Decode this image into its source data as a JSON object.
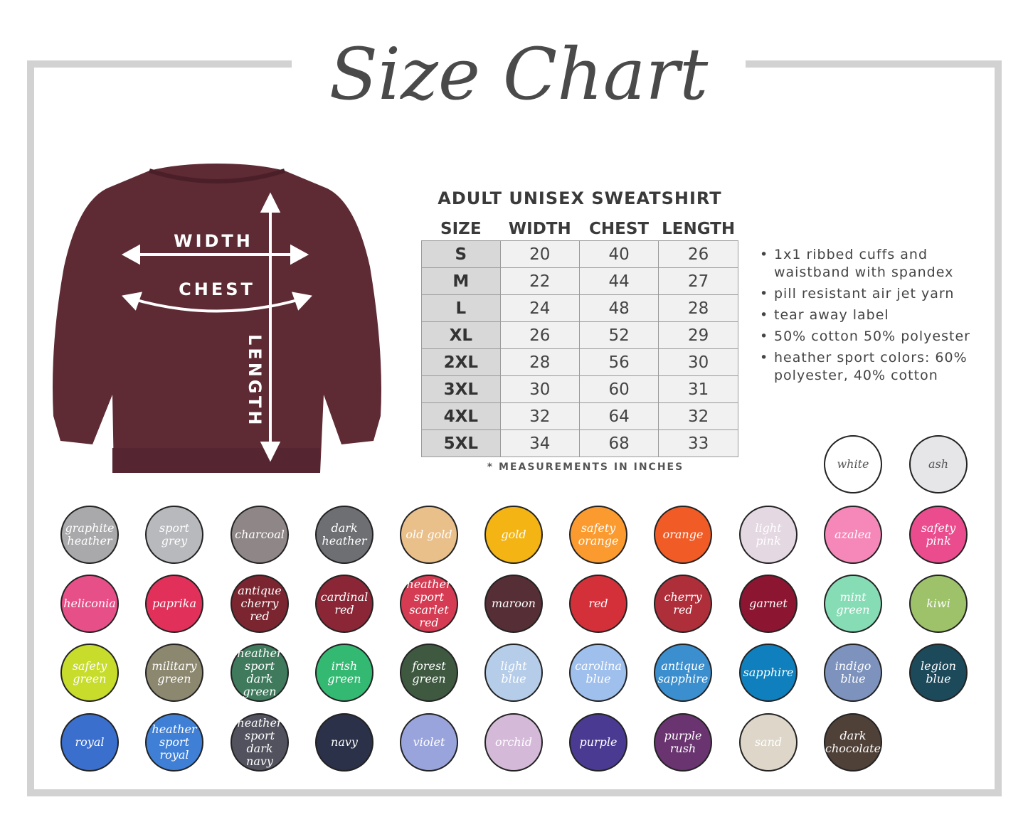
{
  "title": "Size Chart",
  "shirt": {
    "color": "#5e2a34",
    "labels": {
      "width": "WIDTH",
      "chest": "CHEST",
      "length": "LENGTH"
    }
  },
  "table": {
    "title": "ADULT UNISEX SWEATSHIRT",
    "headers": [
      "SIZE",
      "WIDTH",
      "CHEST",
      "LENGTH"
    ],
    "rows": [
      [
        "S",
        "20",
        "40",
        "26"
      ],
      [
        "M",
        "22",
        "44",
        "27"
      ],
      [
        "L",
        "24",
        "48",
        "28"
      ],
      [
        "XL",
        "26",
        "52",
        "29"
      ],
      [
        "2XL",
        "28",
        "56",
        "30"
      ],
      [
        "3XL",
        "30",
        "60",
        "31"
      ],
      [
        "4XL",
        "32",
        "64",
        "32"
      ],
      [
        "5XL",
        "34",
        "68",
        "33"
      ]
    ],
    "note": "* MEASUREMENTS IN INCHES"
  },
  "features": [
    "1x1 ribbed cuffs and waistband with spandex",
    "pill resistant air jet yarn",
    "tear away label",
    "50% cotton 50% polyester",
    "heather sport colors: 60% polyester, 40% cotton"
  ],
  "top_swatches": [
    {
      "name": "white",
      "color": "#ffffff"
    },
    {
      "name": "ash",
      "color": "#e6e6e8"
    }
  ],
  "swatches": [
    {
      "name": "graphite heather",
      "color": "#a9a9ab"
    },
    {
      "name": "sport grey",
      "color": "#b8b9bd"
    },
    {
      "name": "charcoal",
      "color": "#8f8787"
    },
    {
      "name": "dark heather",
      "color": "#6e6f73"
    },
    {
      "name": "old gold",
      "color": "#e9bf8a"
    },
    {
      "name": "gold",
      "color": "#f3b414"
    },
    {
      "name": "safety orange",
      "color": "#fb9a2e"
    },
    {
      "name": "orange",
      "color": "#f05b26"
    },
    {
      "name": "light pink",
      "color": "#e4d8e2"
    },
    {
      "name": "azalea",
      "color": "#f588b8"
    },
    {
      "name": "safety pink",
      "color": "#ea4c8e"
    },
    {
      "name": "heliconia",
      "color": "#e74f88"
    },
    {
      "name": "paprika",
      "color": "#e1305a"
    },
    {
      "name": "antique cherry red",
      "color": "#7b2530"
    },
    {
      "name": "cardinal red",
      "color": "#8a2636"
    },
    {
      "name": "heather sport scarlet red",
      "color": "#d53b52"
    },
    {
      "name": "maroon",
      "color": "#552e36"
    },
    {
      "name": "red",
      "color": "#d3303a"
    },
    {
      "name": "cherry red",
      "color": "#ae2f3a"
    },
    {
      "name": "garnet",
      "color": "#8c1531"
    },
    {
      "name": "mint green",
      "color": "#86dcb5"
    },
    {
      "name": "kiwi",
      "color": "#9dc26a"
    },
    {
      "name": "safety green",
      "color": "#c7dc2b"
    },
    {
      "name": "military green",
      "color": "#8c876f"
    },
    {
      "name": "heather sport dark green",
      "color": "#3f7a5d"
    },
    {
      "name": "irish green",
      "color": "#34b973"
    },
    {
      "name": "forest green",
      "color": "#3e5940"
    },
    {
      "name": "light blue",
      "color": "#b6cdea"
    },
    {
      "name": "carolina blue",
      "color": "#9fbfec"
    },
    {
      "name": "antique sapphire",
      "color": "#3c8fce"
    },
    {
      "name": "sapphire",
      "color": "#0f80bd"
    },
    {
      "name": "indigo blue",
      "color": "#7d93bd"
    },
    {
      "name": "legion blue",
      "color": "#1d4a5b"
    },
    {
      "name": "royal",
      "color": "#3a6fce"
    },
    {
      "name": "heather sport royal",
      "color": "#3f80d6"
    },
    {
      "name": "heather sport dark navy",
      "color": "#52525e"
    },
    {
      "name": "navy",
      "color": "#2a3148"
    },
    {
      "name": "violet",
      "color": "#9aa4dc"
    },
    {
      "name": "orchid",
      "color": "#d4bad8"
    },
    {
      "name": "purple",
      "color": "#4a3a92"
    },
    {
      "name": "purple rush",
      "color": "#6a3470"
    },
    {
      "name": "sand",
      "color": "#ddd6c9"
    },
    {
      "name": "dark chocolate",
      "color": "#4f4138"
    }
  ]
}
